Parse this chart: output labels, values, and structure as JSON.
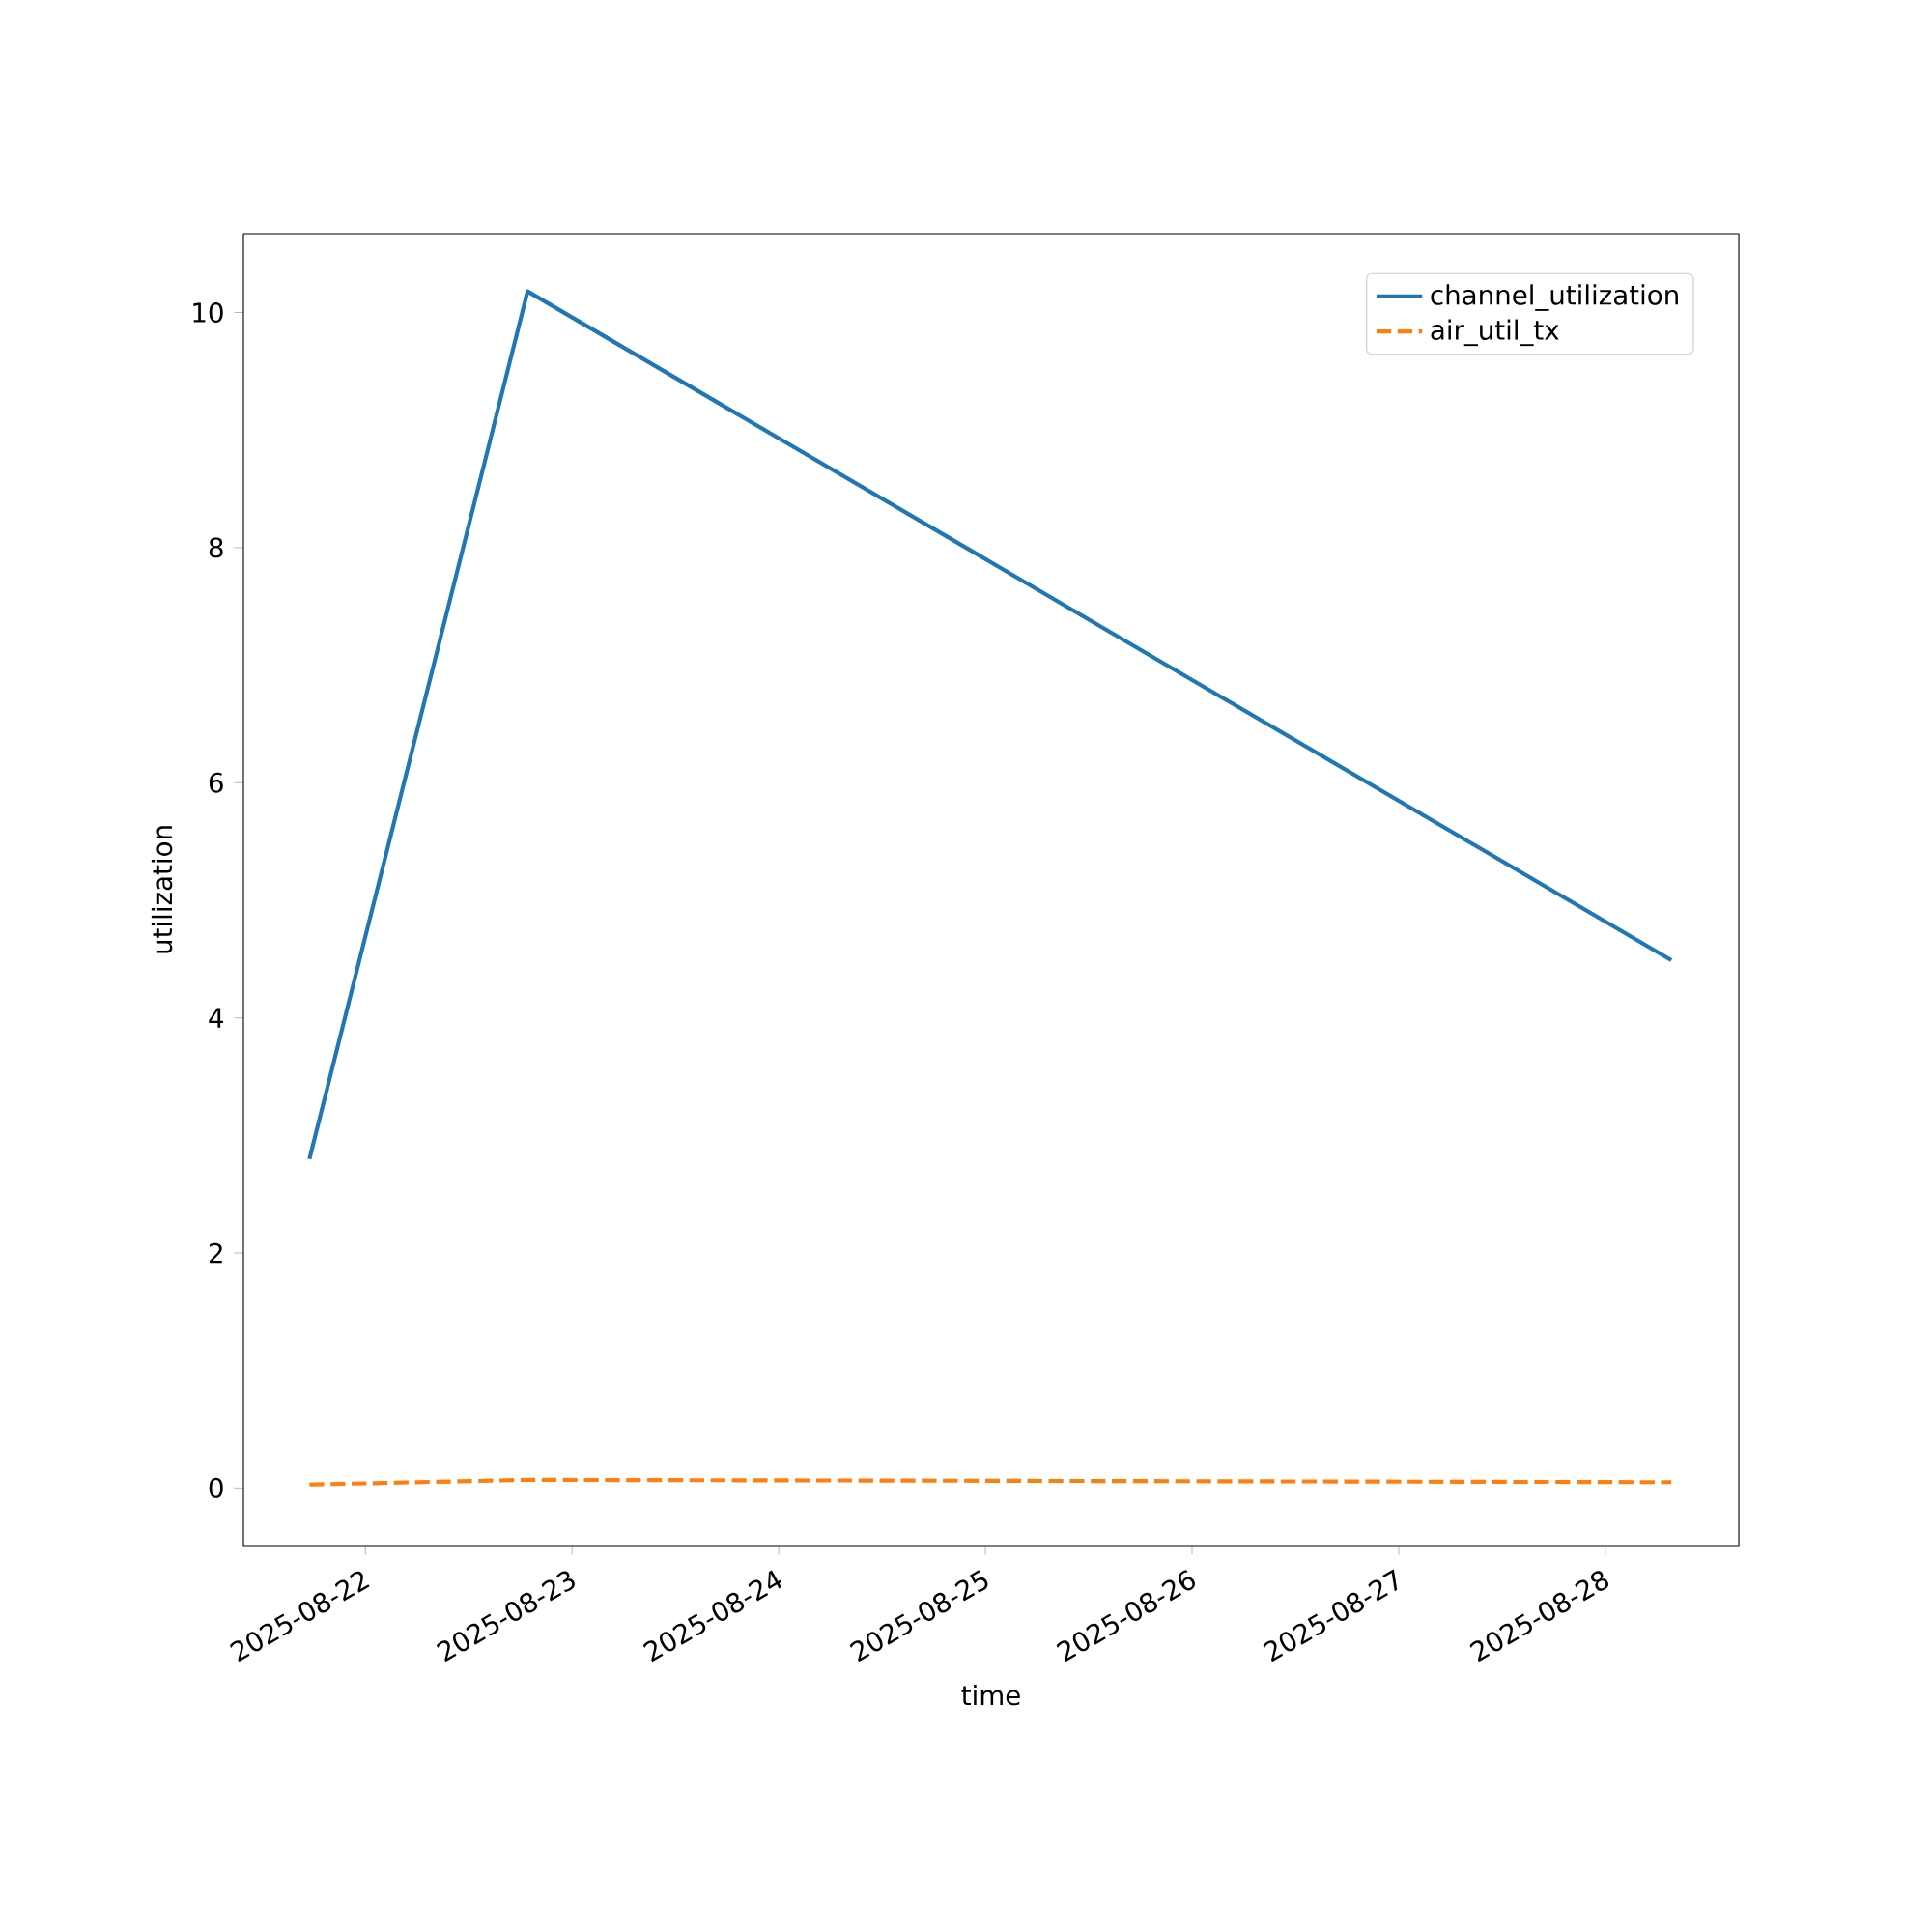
{
  "chart_data": {
    "type": "line",
    "xlabel": "time",
    "ylabel": "utilization",
    "x": [
      "2025-08-21T17:30",
      "2025-08-22T18:50",
      "2025-08-28T07:40"
    ],
    "series": [
      {
        "name": "channel_utilization",
        "color": "#1f77b4",
        "line_style": "solid",
        "values": [
          2.8,
          10.18,
          4.49
        ]
      },
      {
        "name": "air_util_tx",
        "color": "#ff7f0e",
        "line_style": "dashed",
        "values": [
          0.03,
          0.07,
          0.05
        ]
      }
    ],
    "xlim": [
      "2025-08-21T09:50",
      "2025-08-28T15:30"
    ],
    "ylim": [
      -0.49,
      10.67
    ],
    "xticks": [
      "2025-08-22",
      "2025-08-23",
      "2025-08-24",
      "2025-08-25",
      "2025-08-26",
      "2025-08-27",
      "2025-08-28"
    ],
    "yticks": [
      0,
      2,
      4,
      6,
      8,
      10
    ],
    "legend": "top right",
    "grid": false,
    "marker": "none"
  }
}
